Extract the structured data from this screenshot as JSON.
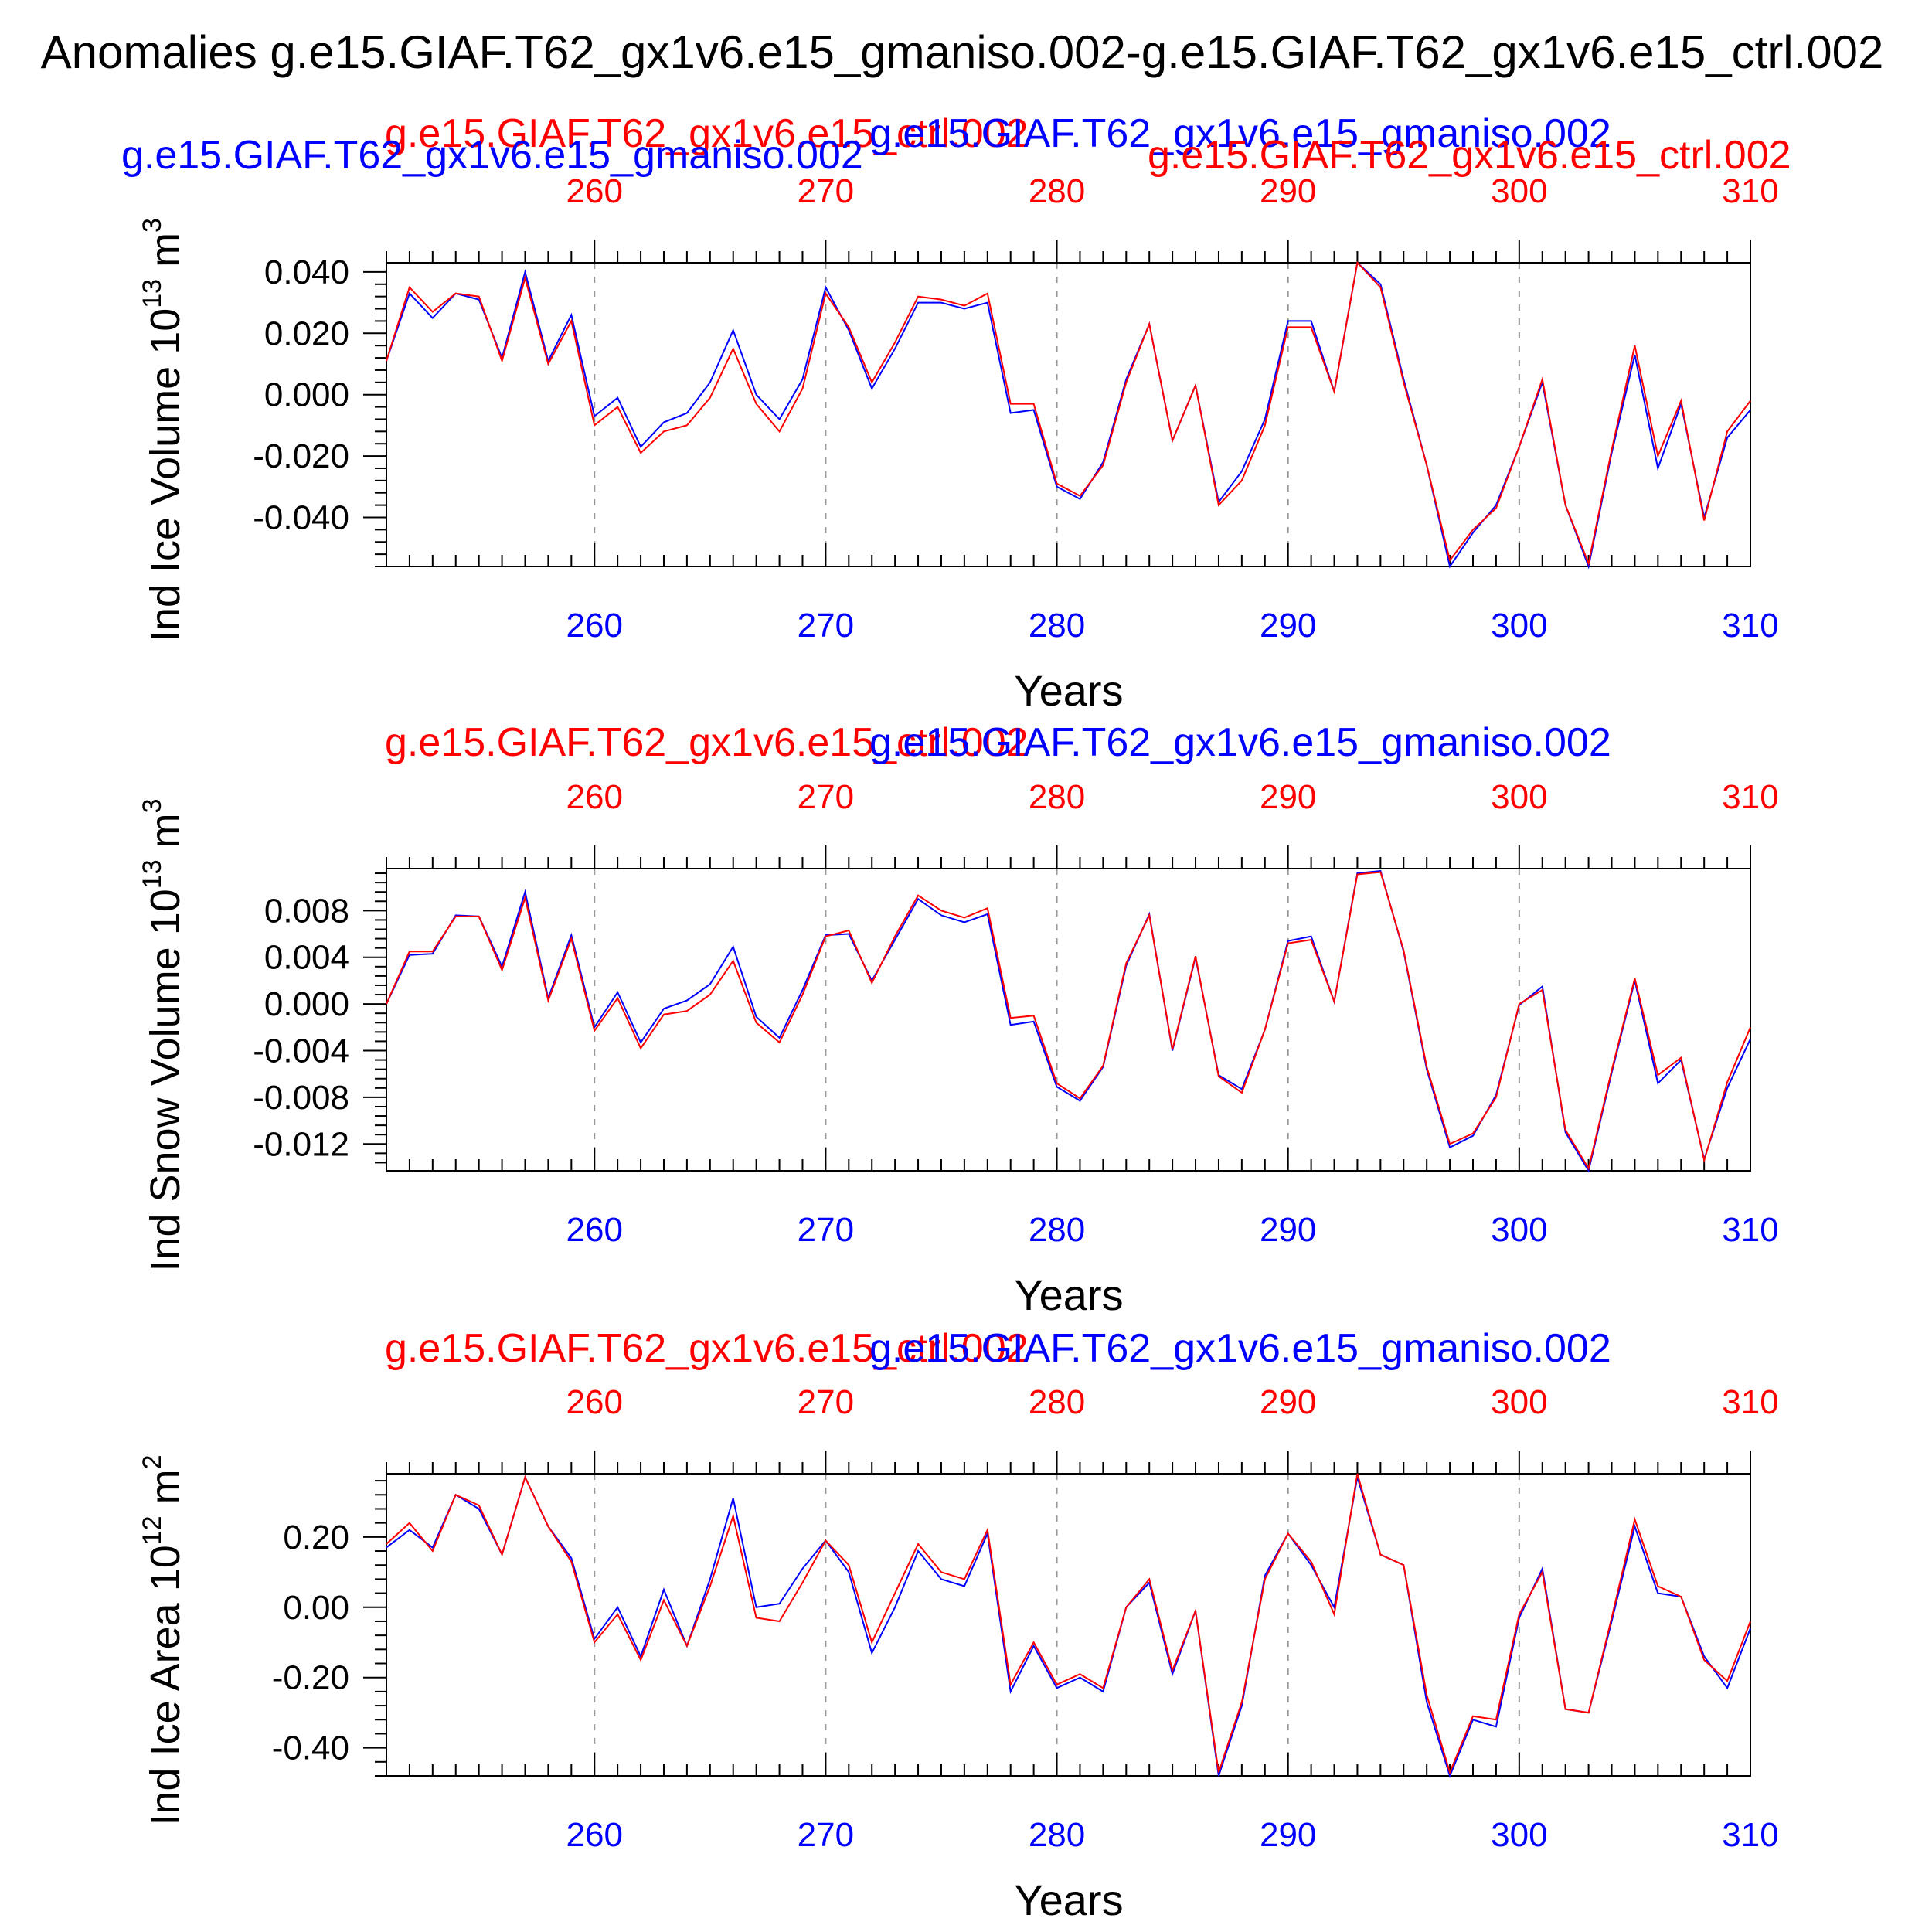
{
  "figure": {
    "title": "Anomalies g.e15.GIAF.T62_gx1v6.e15_gmaniso.002-g.e15.GIAF.T62_gx1v6.e15_ctrl.002"
  },
  "chart_data": [
    {
      "type": "line",
      "ylabel": "Ind Ice Volume 10",
      "ylabel_exp": "13",
      "ylabel_unit": " m",
      "ylabel_unit_exp": "3",
      "xlabel": "Years",
      "xlim": [
        251,
        310
      ],
      "ylim": [
        -0.056,
        0.043
      ],
      "x_ticks": [
        260,
        270,
        280,
        290,
        300,
        310
      ],
      "y_ticks": [
        -0.04,
        -0.02,
        0.0,
        0.02,
        0.04
      ],
      "y_tick_labels": [
        "-0.040",
        "-0.020",
        "0.000",
        "0.020",
        "0.040"
      ],
      "top_titles": [
        {
          "text": "g.e15.GIAF.T62_gx1v6.e15_ctrl.002",
          "color": "#ff0000"
        },
        {
          "text": "g.e15.GIAF.T62_gx1v6.e15_gmaniso.002",
          "color": "#0000ff"
        },
        {
          "text": "g.e15.GIAF.T62_gx1v6.e15_gmaniso.002",
          "color": "#0000ff"
        },
        {
          "text": "g.e15.GIAF.T62_gx1v6.e15_ctrl.002",
          "color": "#ff0000"
        }
      ],
      "series": [
        {
          "color": "#0000ff",
          "values": [
            0.011,
            0.033,
            0.025,
            0.033,
            0.031,
            0.012,
            0.04,
            0.011,
            0.026,
            -0.007,
            -0.001,
            -0.017,
            -0.009,
            -0.006,
            0.004,
            0.021,
            0.0,
            -0.008,
            0.005,
            0.035,
            0.021,
            0.002,
            0.015,
            0.03,
            0.03,
            0.028,
            0.03,
            -0.006,
            -0.005,
            -0.03,
            -0.034,
            -0.022,
            0.005,
            0.023,
            -0.015,
            0.003,
            -0.035,
            -0.025,
            -0.008,
            0.024,
            0.024,
            0.001,
            0.043,
            0.036,
            0.005,
            -0.023,
            -0.056,
            -0.045,
            -0.036,
            -0.017,
            0.004,
            -0.036,
            -0.056,
            -0.019,
            0.013,
            -0.024,
            -0.003,
            -0.04,
            -0.014,
            -0.005
          ]
        },
        {
          "color": "#ff0000",
          "values": [
            0.011,
            0.035,
            0.027,
            0.033,
            0.032,
            0.011,
            0.038,
            0.01,
            0.024,
            -0.01,
            -0.004,
            -0.019,
            -0.012,
            -0.01,
            -0.001,
            0.015,
            -0.003,
            -0.012,
            0.002,
            0.033,
            0.022,
            0.004,
            0.017,
            0.032,
            0.031,
            0.029,
            0.033,
            -0.003,
            -0.003,
            -0.029,
            -0.033,
            -0.023,
            0.004,
            0.023,
            -0.015,
            0.003,
            -0.036,
            -0.028,
            -0.01,
            0.022,
            0.022,
            0.001,
            0.043,
            0.035,
            0.004,
            -0.023,
            -0.054,
            -0.044,
            -0.037,
            -0.017,
            0.005,
            -0.036,
            -0.055,
            -0.018,
            0.016,
            -0.02,
            -0.002,
            -0.041,
            -0.012,
            -0.002
          ]
        }
      ]
    },
    {
      "type": "line",
      "ylabel": "Ind Snow Volume 10",
      "ylabel_exp": "13",
      "ylabel_unit": " m",
      "ylabel_unit_exp": "3",
      "xlabel": "Years",
      "xlim": [
        251,
        310
      ],
      "ylim": [
        -0.0143,
        0.0116
      ],
      "x_ticks": [
        260,
        270,
        280,
        290,
        300,
        310
      ],
      "y_ticks": [
        -0.012,
        -0.008,
        -0.004,
        0.0,
        0.004,
        0.008
      ],
      "y_tick_labels": [
        "-0.012",
        "-0.008",
        "-0.004",
        "0.000",
        "0.004",
        "0.008"
      ],
      "top_titles": [
        {
          "text": "g.e15.GIAF.T62_gx1v6.e15_ctrl.002",
          "color": "#ff0000"
        },
        {
          "text": "g.e15.GIAF.T62_gx1v6.e15_gmaniso.002",
          "color": "#0000ff"
        }
      ],
      "series": [
        {
          "color": "#0000ff",
          "values": [
            0.0,
            0.0042,
            0.0043,
            0.0076,
            0.0075,
            0.0032,
            0.0096,
            0.0005,
            0.0059,
            -0.002,
            0.001,
            -0.0033,
            -0.0004,
            0.0003,
            0.0017,
            0.0049,
            -0.0011,
            -0.0029,
            0.0012,
            0.0059,
            0.006,
            0.002,
            0.0055,
            0.009,
            0.0076,
            0.007,
            0.0077,
            -0.0018,
            -0.0015,
            -0.0071,
            -0.0083,
            -0.0054,
            0.0033,
            0.0077,
            -0.004,
            0.004,
            -0.0061,
            -0.0073,
            -0.0022,
            0.0054,
            0.0058,
            0.0002,
            0.0112,
            0.0114,
            0.0045,
            -0.0056,
            -0.0123,
            -0.0113,
            -0.0078,
            -0.0001,
            0.0015,
            -0.011,
            -0.0143,
            -0.0059,
            0.002,
            -0.0068,
            -0.0048,
            -0.0133,
            -0.0072,
            -0.003
          ]
        },
        {
          "color": "#ff0000",
          "values": [
            0.0,
            0.0045,
            0.0045,
            0.0075,
            0.0075,
            0.0029,
            0.0091,
            0.0003,
            0.0056,
            -0.0023,
            0.0005,
            -0.0038,
            -0.0009,
            -0.0006,
            0.0008,
            0.0037,
            -0.0016,
            -0.0033,
            0.0008,
            0.0058,
            0.0063,
            0.0018,
            0.0058,
            0.0093,
            0.008,
            0.0074,
            0.0082,
            -0.0012,
            -0.001,
            -0.0068,
            -0.0081,
            -0.0053,
            0.0035,
            0.0076,
            -0.0039,
            0.0041,
            -0.0062,
            -0.0076,
            -0.0022,
            0.0052,
            0.0055,
            0.0002,
            0.0111,
            0.0113,
            0.0046,
            -0.0054,
            -0.012,
            -0.0111,
            -0.008,
            0.0,
            0.0012,
            -0.0108,
            -0.0141,
            -0.0057,
            0.0022,
            -0.0061,
            -0.0046,
            -0.0134,
            -0.0067,
            -0.002
          ]
        }
      ]
    },
    {
      "type": "line",
      "ylabel": "Ind Ice Area 10",
      "ylabel_exp": "12",
      "ylabel_unit": " m",
      "ylabel_unit_exp": "2",
      "xlabel": "Years",
      "xlim": [
        251,
        310
      ],
      "ylim": [
        -0.48,
        0.38
      ],
      "x_ticks": [
        260,
        270,
        280,
        290,
        300,
        310
      ],
      "y_ticks": [
        -0.4,
        -0.2,
        0.0,
        0.2
      ],
      "y_tick_labels": [
        "-0.40",
        "-0.20",
        "0.00",
        "0.20"
      ],
      "top_titles": [
        {
          "text": "g.e15.GIAF.T62_gx1v6.e15_ctrl.002",
          "color": "#ff0000"
        },
        {
          "text": "g.e15.GIAF.T62_gx1v6.e15_gmaniso.002",
          "color": "#0000ff"
        }
      ],
      "series": [
        {
          "color": "#0000ff",
          "values": [
            0.17,
            0.22,
            0.17,
            0.32,
            0.28,
            0.15,
            0.37,
            0.23,
            0.14,
            -0.09,
            0.0,
            -0.14,
            0.05,
            -0.11,
            0.08,
            0.31,
            0.0,
            0.01,
            0.11,
            0.19,
            0.1,
            -0.13,
            0.0,
            0.16,
            0.08,
            0.06,
            0.21,
            -0.24,
            -0.11,
            -0.23,
            -0.2,
            -0.24,
            0.0,
            0.07,
            -0.19,
            -0.01,
            -0.48,
            -0.28,
            0.09,
            0.21,
            0.12,
            0.0,
            0.37,
            0.15,
            0.12,
            -0.27,
            -0.48,
            -0.32,
            -0.34,
            -0.03,
            0.11,
            -0.29,
            -0.3,
            -0.04,
            0.23,
            0.04,
            0.03,
            -0.14,
            -0.23,
            -0.06
          ]
        },
        {
          "color": "#ff0000",
          "values": [
            0.18,
            0.24,
            0.16,
            0.32,
            0.29,
            0.15,
            0.37,
            0.23,
            0.13,
            -0.1,
            -0.02,
            -0.15,
            0.02,
            -0.11,
            0.06,
            0.26,
            -0.03,
            -0.04,
            0.07,
            0.19,
            0.12,
            -0.1,
            0.04,
            0.18,
            0.1,
            0.08,
            0.22,
            -0.22,
            -0.1,
            -0.22,
            -0.19,
            -0.23,
            0.0,
            0.08,
            -0.18,
            -0.01,
            -0.47,
            -0.27,
            0.08,
            0.21,
            0.13,
            -0.02,
            0.38,
            0.15,
            0.12,
            -0.25,
            -0.47,
            -0.31,
            -0.32,
            -0.02,
            0.1,
            -0.29,
            -0.3,
            -0.03,
            0.25,
            0.06,
            0.03,
            -0.15,
            -0.21,
            -0.04
          ]
        }
      ]
    }
  ]
}
